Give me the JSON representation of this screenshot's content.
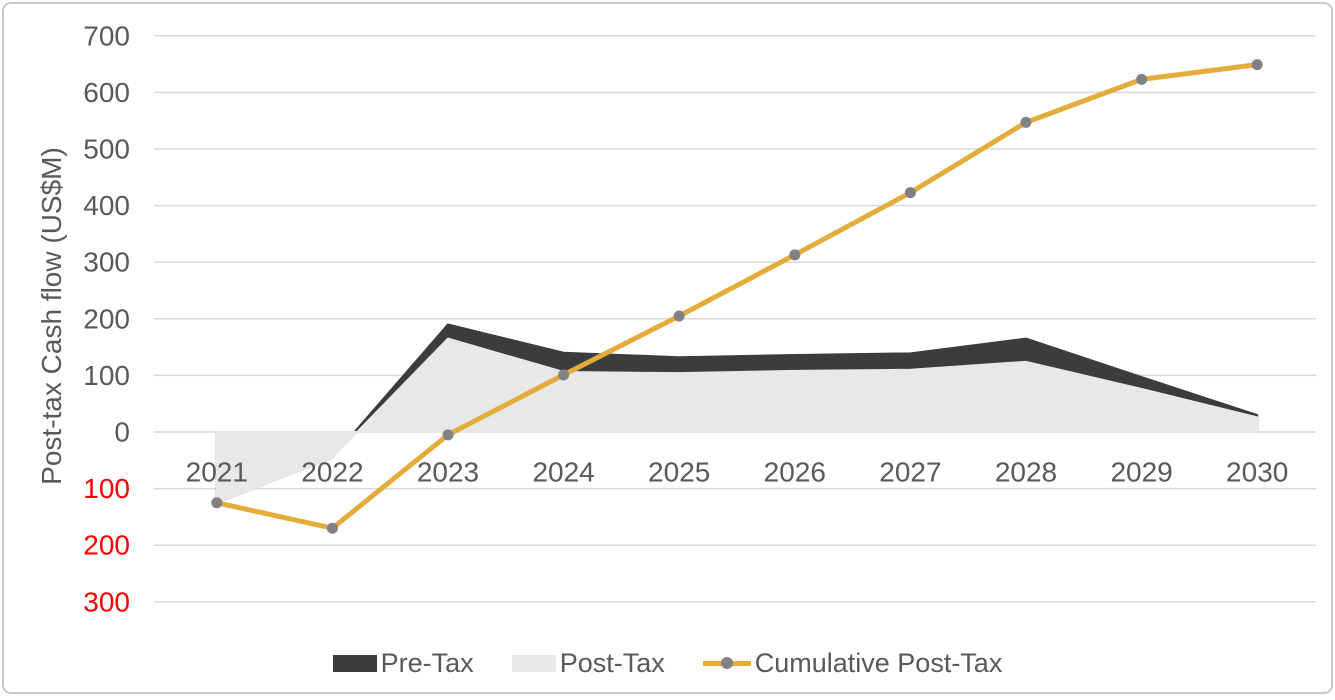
{
  "axis": {
    "y_title": "Post-tax Cash flow (US$M)",
    "y_ticks": [
      {
        "label": "700",
        "value": 700,
        "negative": false
      },
      {
        "label": "600",
        "value": 600,
        "negative": false
      },
      {
        "label": "500",
        "value": 500,
        "negative": false
      },
      {
        "label": "400",
        "value": 400,
        "negative": false
      },
      {
        "label": "300",
        "value": 300,
        "negative": false
      },
      {
        "label": "200",
        "value": 200,
        "negative": false
      },
      {
        "label": "100",
        "value": 100,
        "negative": false
      },
      {
        "label": "0",
        "value": 0,
        "negative": false
      },
      {
        "label": "100",
        "value": -100,
        "negative": true
      },
      {
        "label": "200",
        "value": -200,
        "negative": true
      },
      {
        "label": "300",
        "value": -300,
        "negative": true
      }
    ]
  },
  "legend": [
    {
      "label": "Pre-Tax",
      "swatch_color": "#3C3C3E"
    },
    {
      "label": "Post-Tax",
      "swatch_color": "#E8E8E8"
    },
    {
      "label": "Cumulative Post-Tax",
      "line_color": "#E4AC3B",
      "marker_color": "#818185"
    }
  ],
  "colors": {
    "axis_label": "#595959",
    "negative_label": "#FF0000",
    "grid": "#D9D9D9",
    "background": "#FFFFFF",
    "border": "#C9C9C9"
  },
  "chart_data": {
    "type": "area",
    "title": "",
    "categories": [
      "2021",
      "2022",
      "2023",
      "2024",
      "2025",
      "2026",
      "2027",
      "2028",
      "2029",
      "2030"
    ],
    "series": [
      {
        "name": "Pre-Tax",
        "type": "area",
        "color": "#3C3C3E",
        "values": [
          -125,
          -45,
          190,
          140,
          132,
          136,
          139,
          165,
          97,
          30
        ]
      },
      {
        "name": "Post-Tax",
        "type": "area",
        "color": "#E8E8E8",
        "values": [
          -125,
          -45,
          165,
          106,
          104,
          108,
          110,
          124,
          76,
          26
        ]
      },
      {
        "name": "Cumulative Post-Tax",
        "type": "line",
        "color": "#E4AC3B",
        "marker_color": "#818185",
        "values": [
          -125,
          -170,
          -5,
          101,
          205,
          313,
          423,
          547,
          623,
          649
        ]
      }
    ],
    "xlabel": "",
    "ylabel": "Post-tax Cash flow (US$M)",
    "ylim": [
      -300,
      700
    ],
    "y_tick_step": 100,
    "negative_tick_labels_shown_unsigned_in_red": true,
    "grid": true,
    "legend_position": "bottom"
  }
}
